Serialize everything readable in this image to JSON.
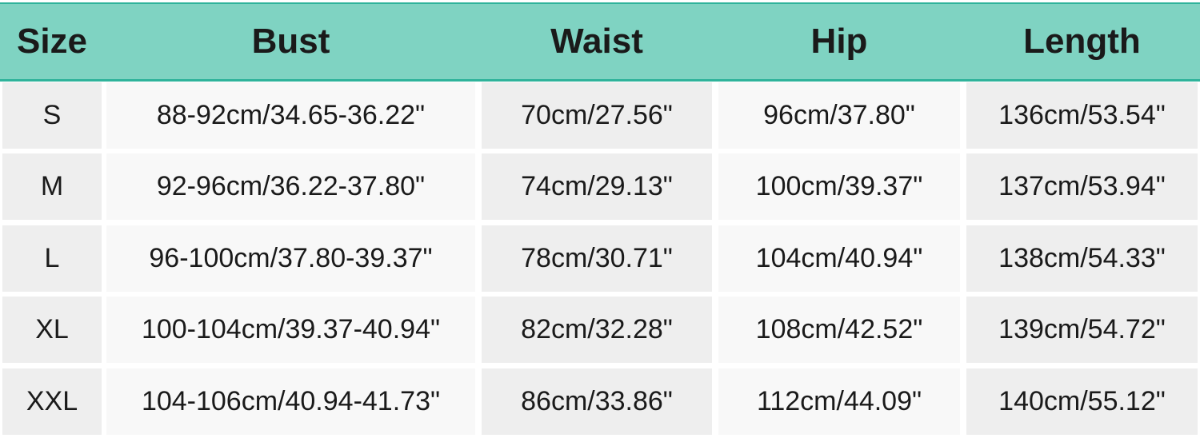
{
  "table": {
    "columns": [
      "Size",
      "Bust",
      "Waist",
      "Hip",
      "Length"
    ],
    "rows": [
      [
        "S",
        "88-92cm/34.65-36.22\"",
        "70cm/27.56\"",
        "96cm/37.80\"",
        "136cm/53.54\""
      ],
      [
        "M",
        "92-96cm/36.22-37.80\"",
        "74cm/29.13\"",
        "100cm/39.37\"",
        "137cm/53.94\""
      ],
      [
        "L",
        "96-100cm/37.80-39.37\"",
        "78cm/30.71\"",
        "104cm/40.94\"",
        "138cm/54.33\""
      ],
      [
        "XL",
        "100-104cm/39.37-40.94\"",
        "82cm/32.28\"",
        "108cm/42.52\"",
        "139cm/54.72\""
      ],
      [
        "XXL",
        "104-106cm/40.94-41.73\"",
        "86cm/33.86\"",
        "112cm/44.09\"",
        "140cm/55.12\""
      ]
    ]
  }
}
